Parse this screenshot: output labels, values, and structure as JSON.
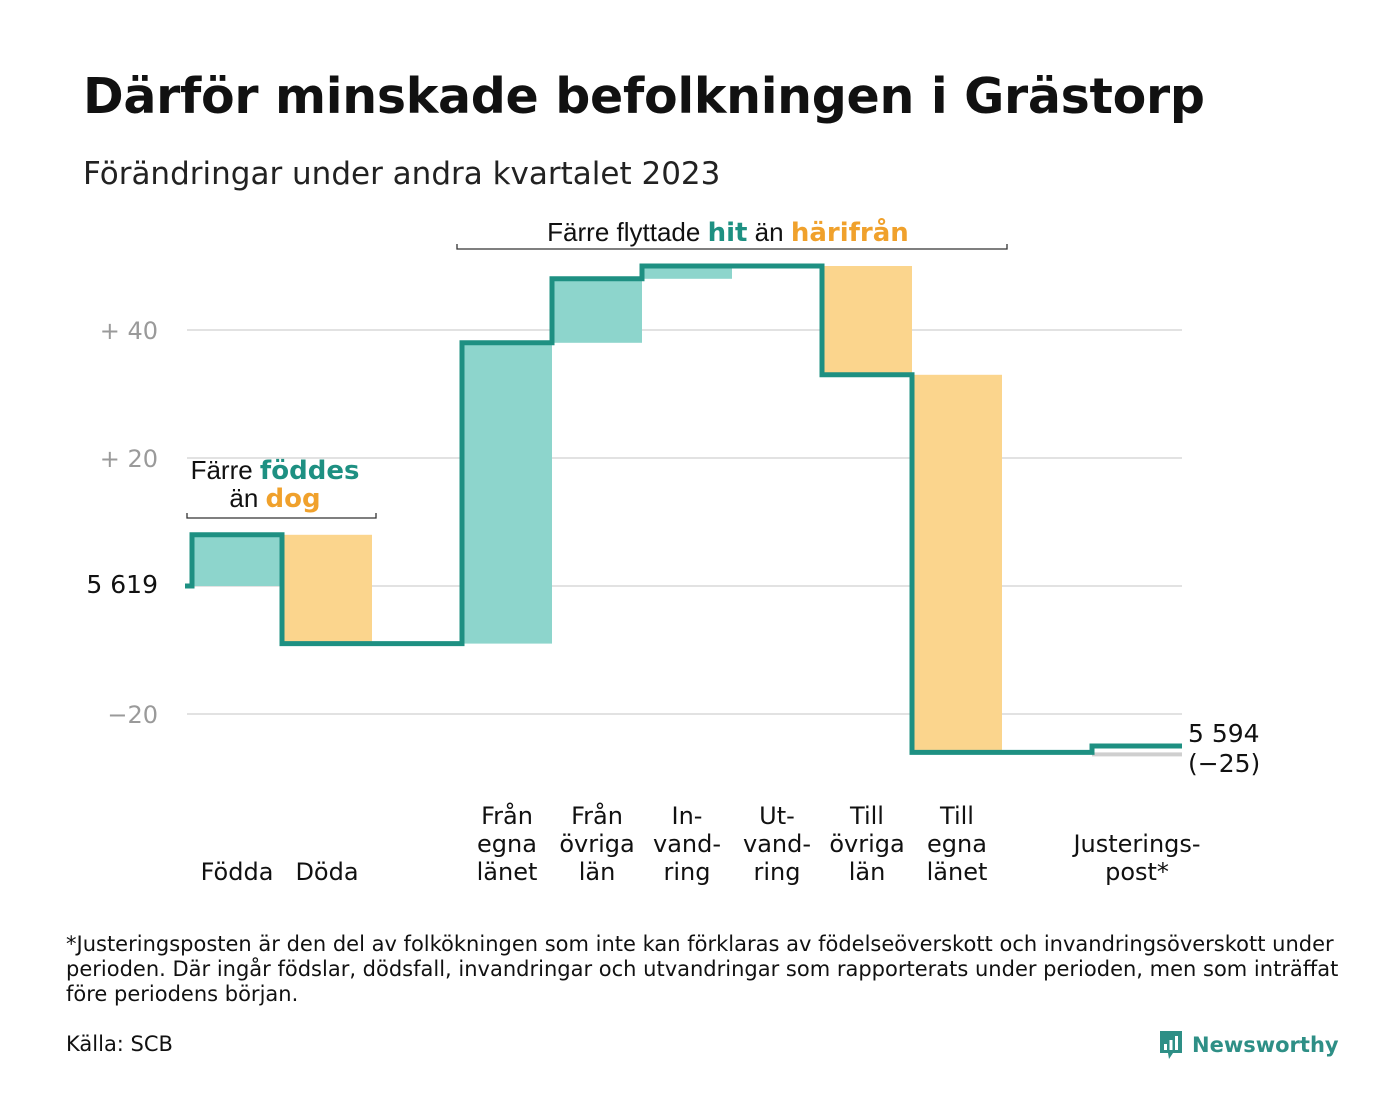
{
  "title": "Därför minskade befolkningen i Grästorp",
  "subtitle": "Förändringar under andra kvartalet 2023",
  "footnote": "*Justeringsposten är den del av folkökningen som inte kan förklaras av födelseöverskott och invandringsöverskott under perioden. Där ingår födslar, dödsfall, invandringar och utvandringar som rapporterats under perioden, men som inträffat före periodens början.",
  "source": "Källa: SCB",
  "brand": {
    "name": "Newsworthy",
    "icon": "newsworthy-logo-icon"
  },
  "colors": {
    "increase": "#8dd5cc",
    "decrease": "#fbd58d",
    "line": "#1e9082",
    "grid": "#e2e2e2",
    "adjustment": "#cfcfcf",
    "teal_text": "#1e9082",
    "orange_text": "#f0a12c"
  },
  "annotations": {
    "births": {
      "prefix": "Färre",
      "teal": "föddes",
      "line2_prefix": "än",
      "orange": "dog"
    },
    "moves": {
      "prefix": "Färre flyttade",
      "teal": "hit",
      "middle": "än",
      "orange": "härifrån"
    }
  },
  "chart_data": {
    "type": "waterfall",
    "start_value": 5619,
    "start_label": "5  619",
    "end_value": 5594,
    "end_label": "5 594",
    "end_change_label": "(−25)",
    "y_ticks": [
      {
        "value": 40,
        "label": "+  40"
      },
      {
        "value": 20,
        "label": "+  20"
      },
      {
        "value": 0,
        "label": ""
      },
      {
        "value": -20,
        "label": "−20"
      }
    ],
    "ylim": [
      -33,
      52
    ],
    "categories": [
      {
        "name": "Födda",
        "lines": [
          "Födda"
        ],
        "change": 8
      },
      {
        "name": "Döda",
        "lines": [
          "Döda"
        ],
        "change": -17
      },
      {
        "name": "gap",
        "lines": [],
        "change": 0,
        "spacer": true
      },
      {
        "name": "Från egna länet",
        "lines": [
          "Från",
          "egna",
          "länet"
        ],
        "change": 47
      },
      {
        "name": "Från övriga län",
        "lines": [
          "Från",
          "övriga",
          "län"
        ],
        "change": 10
      },
      {
        "name": "Invandring",
        "lines": [
          "In-",
          "vand-",
          "ring"
        ],
        "change": 2
      },
      {
        "name": "Utvandring",
        "lines": [
          "Ut-",
          "vand-",
          "ring"
        ],
        "change": 0
      },
      {
        "name": "Till övriga län",
        "lines": [
          "Till",
          "övriga",
          "län"
        ],
        "change": -17
      },
      {
        "name": "Till egna länet",
        "lines": [
          "Till",
          "egna",
          "länet"
        ],
        "change": -59
      },
      {
        "name": "gap",
        "lines": [],
        "change": 0,
        "spacer": true
      },
      {
        "name": "Justeringspost*",
        "lines": [
          "Justerings-",
          "post*"
        ],
        "change": 1,
        "adjustment": true
      }
    ]
  }
}
